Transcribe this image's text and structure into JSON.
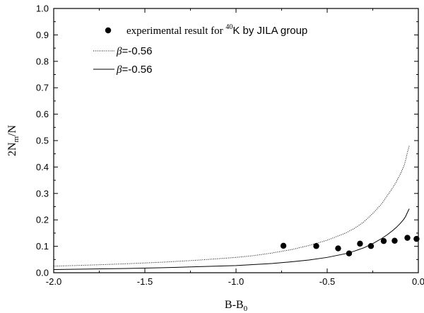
{
  "chart_data": {
    "type": "scatter",
    "xlabel": {
      "main": "B-B",
      "sub": "0"
    },
    "ylabel": {
      "main": "2N",
      "sub": "m",
      "tail": "/N"
    },
    "xlim": [
      -2.0,
      0.0
    ],
    "ylim": [
      0.0,
      1.0
    ],
    "x_ticks": [
      "-2.0",
      "-1.5",
      "-1.0",
      "-0.5",
      "0.0"
    ],
    "y_ticks": [
      "0.0",
      "0.1",
      "0.2",
      "0.3",
      "0.4",
      "0.5",
      "0.6",
      "0.7",
      "0.8",
      "0.9",
      "1.0"
    ],
    "grid": false,
    "legend_position": "top-left",
    "legend": [
      {
        "marker": "dot",
        "text_before": "experimental result for ",
        "superscript": "40",
        "text_after": "K by JILA group"
      },
      {
        "marker": "dotted-line",
        "symbol": "β",
        "text": "=-0.56"
      },
      {
        "marker": "solid-line",
        "symbol": "β",
        "text": "=-0.56"
      }
    ],
    "series": [
      {
        "style": "points",
        "x": [
          -0.74,
          -0.56,
          -0.44,
          -0.38,
          -0.32,
          -0.26,
          -0.19,
          -0.13,
          -0.06,
          -0.01
        ],
        "y": [
          0.102,
          0.101,
          0.092,
          0.073,
          0.11,
          0.101,
          0.12,
          0.121,
          0.132,
          0.128
        ]
      },
      {
        "style": "dotted",
        "x": [
          -2.0,
          -1.8,
          -1.6,
          -1.4,
          -1.2,
          -1.0,
          -0.9,
          -0.8,
          -0.7,
          -0.6,
          -0.5,
          -0.4,
          -0.35,
          -0.3,
          -0.25,
          -0.2,
          -0.17,
          -0.14,
          -0.12,
          -0.1,
          -0.08,
          -0.07,
          -0.06,
          -0.05
        ],
        "y": [
          0.025,
          0.029,
          0.034,
          0.04,
          0.048,
          0.058,
          0.065,
          0.075,
          0.087,
          0.103,
          0.123,
          0.15,
          0.168,
          0.192,
          0.224,
          0.262,
          0.292,
          0.322,
          0.345,
          0.372,
          0.402,
          0.425,
          0.455,
          0.48
        ]
      },
      {
        "style": "solid",
        "x": [
          -2.0,
          -1.8,
          -1.6,
          -1.4,
          -1.2,
          -1.0,
          -0.9,
          -0.8,
          -0.7,
          -0.6,
          -0.5,
          -0.4,
          -0.35,
          -0.3,
          -0.25,
          -0.2,
          -0.17,
          -0.14,
          -0.12,
          -0.1,
          -0.08,
          -0.07,
          -0.06,
          -0.05
        ],
        "y": [
          0.012,
          0.014,
          0.016,
          0.019,
          0.023,
          0.027,
          0.031,
          0.035,
          0.041,
          0.048,
          0.058,
          0.072,
          0.082,
          0.094,
          0.11,
          0.13,
          0.144,
          0.16,
          0.172,
          0.186,
          0.202,
          0.213,
          0.228,
          0.242
        ]
      }
    ]
  }
}
